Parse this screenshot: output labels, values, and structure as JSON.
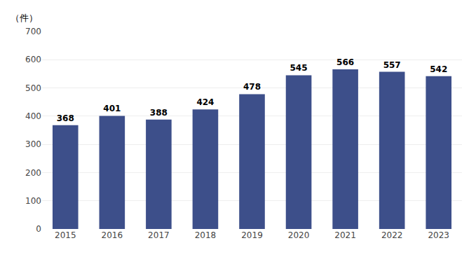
{
  "chart_data": {
    "type": "bar",
    "categories": [
      "2015",
      "2016",
      "2017",
      "2018",
      "2019",
      "2020",
      "2021",
      "2022",
      "2023"
    ],
    "values": [
      368,
      401,
      388,
      424,
      478,
      545,
      566,
      557,
      542
    ],
    "color": "#3d4f8a",
    "ylabel": "（件）",
    "ylim": [
      0,
      700
    ],
    "yticks": [
      0,
      100,
      200,
      300,
      400,
      500,
      600,
      700
    ],
    "grid": true,
    "data_labels": true
  }
}
